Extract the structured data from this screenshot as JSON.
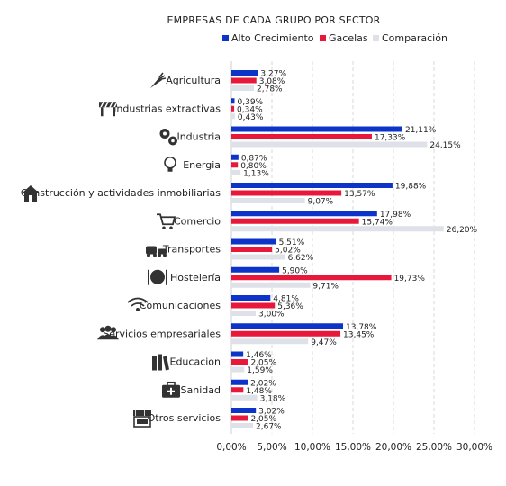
{
  "chart_data": {
    "type": "bar",
    "orientation": "horizontal",
    "title": "EMPRESAS DE CADA GRUPO POR SECTOR",
    "legend_position": "top",
    "xlim": [
      0,
      30
    ],
    "x_ticks": [
      0,
      5,
      10,
      15,
      20,
      25,
      30
    ],
    "x_tick_labels": [
      "0,00%",
      "5,00%",
      "10,00%",
      "15,00%",
      "20,00%",
      "25,00%",
      "30,00%"
    ],
    "grid": true,
    "categories": [
      "Agricultura",
      "Industrias extractivas",
      "Industria",
      "Energia",
      "Construcción y actividades inmobiliarias",
      "Comercio",
      "Transportes",
      "Hostelería",
      "Comunicaciones",
      "Servicios empresariales",
      "Educacion",
      "Sanidad",
      "Otros servicios"
    ],
    "category_icons": [
      "carrot-icon",
      "barrier-icon",
      "gears-icon",
      "lightbulb-icon",
      "house-icon",
      "shopping-cart-icon",
      "vehicles-icon",
      "plate-cutlery-icon",
      "wifi-icon",
      "people-icon",
      "books-icon",
      "medical-case-icon",
      "storefront-icon"
    ],
    "series": [
      {
        "name": "Alto  Crecimiento",
        "color": "#0d34c8",
        "values": [
          3.27,
          0.39,
          21.11,
          0.87,
          19.88,
          17.98,
          5.51,
          5.9,
          4.81,
          13.78,
          1.46,
          2.02,
          3.02
        ],
        "labels": [
          "3,27%",
          "0,39%",
          "21,11%",
          "0,87%",
          "19,88%",
          "17,98%",
          "5,51%",
          "5,90%",
          "4,81%",
          "13,78%",
          "1,46%",
          "2,02%",
          "3,02%"
        ]
      },
      {
        "name": "Gacelas",
        "color": "#e8183a",
        "values": [
          3.08,
          0.34,
          17.33,
          0.8,
          13.57,
          15.74,
          5.02,
          19.73,
          5.36,
          13.45,
          2.05,
          1.48,
          2.05
        ],
        "labels": [
          "3,08%",
          "0,34%",
          "17,33%",
          "0,80%",
          "13,57%",
          "15,74%",
          "5,02%",
          "19,73%",
          "5,36%",
          "13,45%",
          "2,05%",
          "1,48%",
          "2,05%"
        ]
      },
      {
        "name": "Comparación",
        "color": "#dfe1e8",
        "values": [
          2.78,
          0.43,
          24.15,
          1.13,
          9.07,
          26.2,
          6.62,
          9.71,
          3.0,
          9.47,
          1.59,
          3.18,
          2.67
        ],
        "labels": [
          "2,78%",
          "0,43%",
          "24,15%",
          "1,13%",
          "9,07%",
          "26,20%",
          "6,62%",
          "9,71%",
          "3,00%",
          "9,47%",
          "1,59%",
          "3,18%",
          "2,67%"
        ]
      }
    ]
  }
}
